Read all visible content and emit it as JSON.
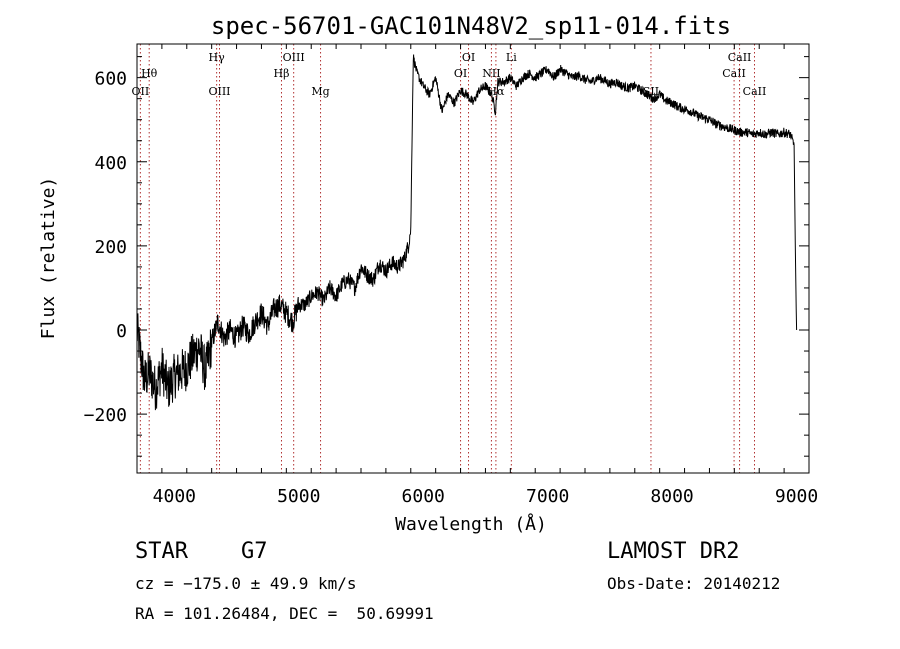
{
  "chart_data": {
    "type": "line",
    "title": "spec-56701-GAC101N48V2_sp11-014.fits",
    "xlabel": "Wavelength (Å)",
    "ylabel": "Flux (relative)",
    "xlim": [
      3700,
      9100
    ],
    "ylim": [
      -340,
      680
    ],
    "x_ticks": [
      4000,
      5000,
      6000,
      7000,
      8000,
      9000
    ],
    "y_ticks": [
      -200,
      0,
      200,
      400,
      600
    ],
    "series": [
      {
        "x": [
          3700,
          3760,
          3800,
          3850,
          3900,
          3950,
          4000,
          4050,
          4100,
          4150,
          4200,
          4250,
          4300,
          4350,
          4400,
          4450,
          4500,
          4550,
          4600,
          4650,
          4700,
          4750,
          4800,
          4850,
          4900,
          4950,
          5000,
          5050,
          5100,
          5150,
          5200,
          5250,
          5300,
          5350,
          5400,
          5450,
          5500,
          5550,
          5600,
          5650,
          5700,
          5750,
          5800,
          5850,
          5880,
          5900,
          5920,
          5950,
          6000,
          6050,
          6100,
          6150,
          6200,
          6250,
          6300,
          6350,
          6400,
          6450,
          6500,
          6550,
          6580,
          6600,
          6650,
          6700,
          6750,
          6800,
          6850,
          6900,
          6950,
          7000,
          7050,
          7100,
          7150,
          7200,
          7250,
          7300,
          7350,
          7400,
          7450,
          7500,
          7550,
          7600,
          7650,
          7700,
          7750,
          7800,
          7850,
          7900,
          7950,
          8000,
          8050,
          8100,
          8150,
          8200,
          8250,
          8300,
          8350,
          8400,
          8450,
          8500,
          8550,
          8600,
          8650,
          8700,
          8750,
          8800,
          8850,
          8900,
          8950,
          8980,
          8990,
          9000
        ],
        "y": [
          0,
          -120,
          -100,
          -140,
          -90,
          -140,
          -110,
          -100,
          -90,
          -60,
          -40,
          -100,
          -30,
          20,
          -20,
          0,
          -20,
          10,
          -10,
          20,
          40,
          10,
          50,
          60,
          40,
          20,
          60,
          60,
          80,
          90,
          70,
          100,
          80,
          110,
          120,
          100,
          150,
          130,
          120,
          160,
          140,
          160,
          150,
          170,
          200,
          240,
          650,
          610,
          580,
          560,
          600,
          520,
          560,
          540,
          570,
          560,
          540,
          570,
          580,
          560,
          520,
          590,
          590,
          600,
          580,
          600,
          610,
          600,
          610,
          620,
          600,
          620,
          610,
          600,
          605,
          595,
          590,
          600,
          595,
          585,
          590,
          580,
          575,
          580,
          570,
          560,
          550,
          560,
          545,
          540,
          530,
          525,
          520,
          510,
          505,
          500,
          490,
          485,
          480,
          475,
          470,
          470,
          465,
          470,
          465,
          470,
          465,
          470,
          465,
          440,
          200,
          0
        ]
      }
    ],
    "lines": [
      {
        "wavelength": 3727,
        "label": "OII",
        "row": 3
      },
      {
        "wavelength": 3798,
        "label": "Hθ",
        "row": 2
      },
      {
        "wavelength": 4340,
        "label": "Hγ",
        "row": 1
      },
      {
        "wavelength": 4363,
        "label": "OIII",
        "row": 3
      },
      {
        "wavelength": 4861,
        "label": "Hβ",
        "row": 2
      },
      {
        "wavelength": 4959,
        "label": "OIII",
        "row": 1
      },
      {
        "wavelength": 5175,
        "label": "Mg",
        "row": 3
      },
      {
        "wavelength": 6300,
        "label": "OI",
        "row": 2
      },
      {
        "wavelength": 6364,
        "label": "OI",
        "row": 1
      },
      {
        "wavelength": 6548,
        "label": "NII",
        "row": 2
      },
      {
        "wavelength": 6584,
        "label": "Hα",
        "row": 3
      },
      {
        "wavelength": 6708,
        "label": "Li",
        "row": 1
      },
      {
        "wavelength": 7830,
        "label": "SII",
        "row": 3
      },
      {
        "wavelength": 8498,
        "label": "CaII",
        "row": 2
      },
      {
        "wavelength": 8542,
        "label": "CaII",
        "row": 1
      },
      {
        "wavelength": 8662,
        "label": "CaII",
        "row": 3
      }
    ]
  },
  "info": {
    "class_line": "STAR    G7",
    "cz_line": "cz = −175.0 ± 49.9 km/s",
    "radec_line": "RA = 101.26484, DEC =  50.69991",
    "survey": "LAMOST DR2",
    "obs_date": "Obs-Date: 20140212"
  }
}
